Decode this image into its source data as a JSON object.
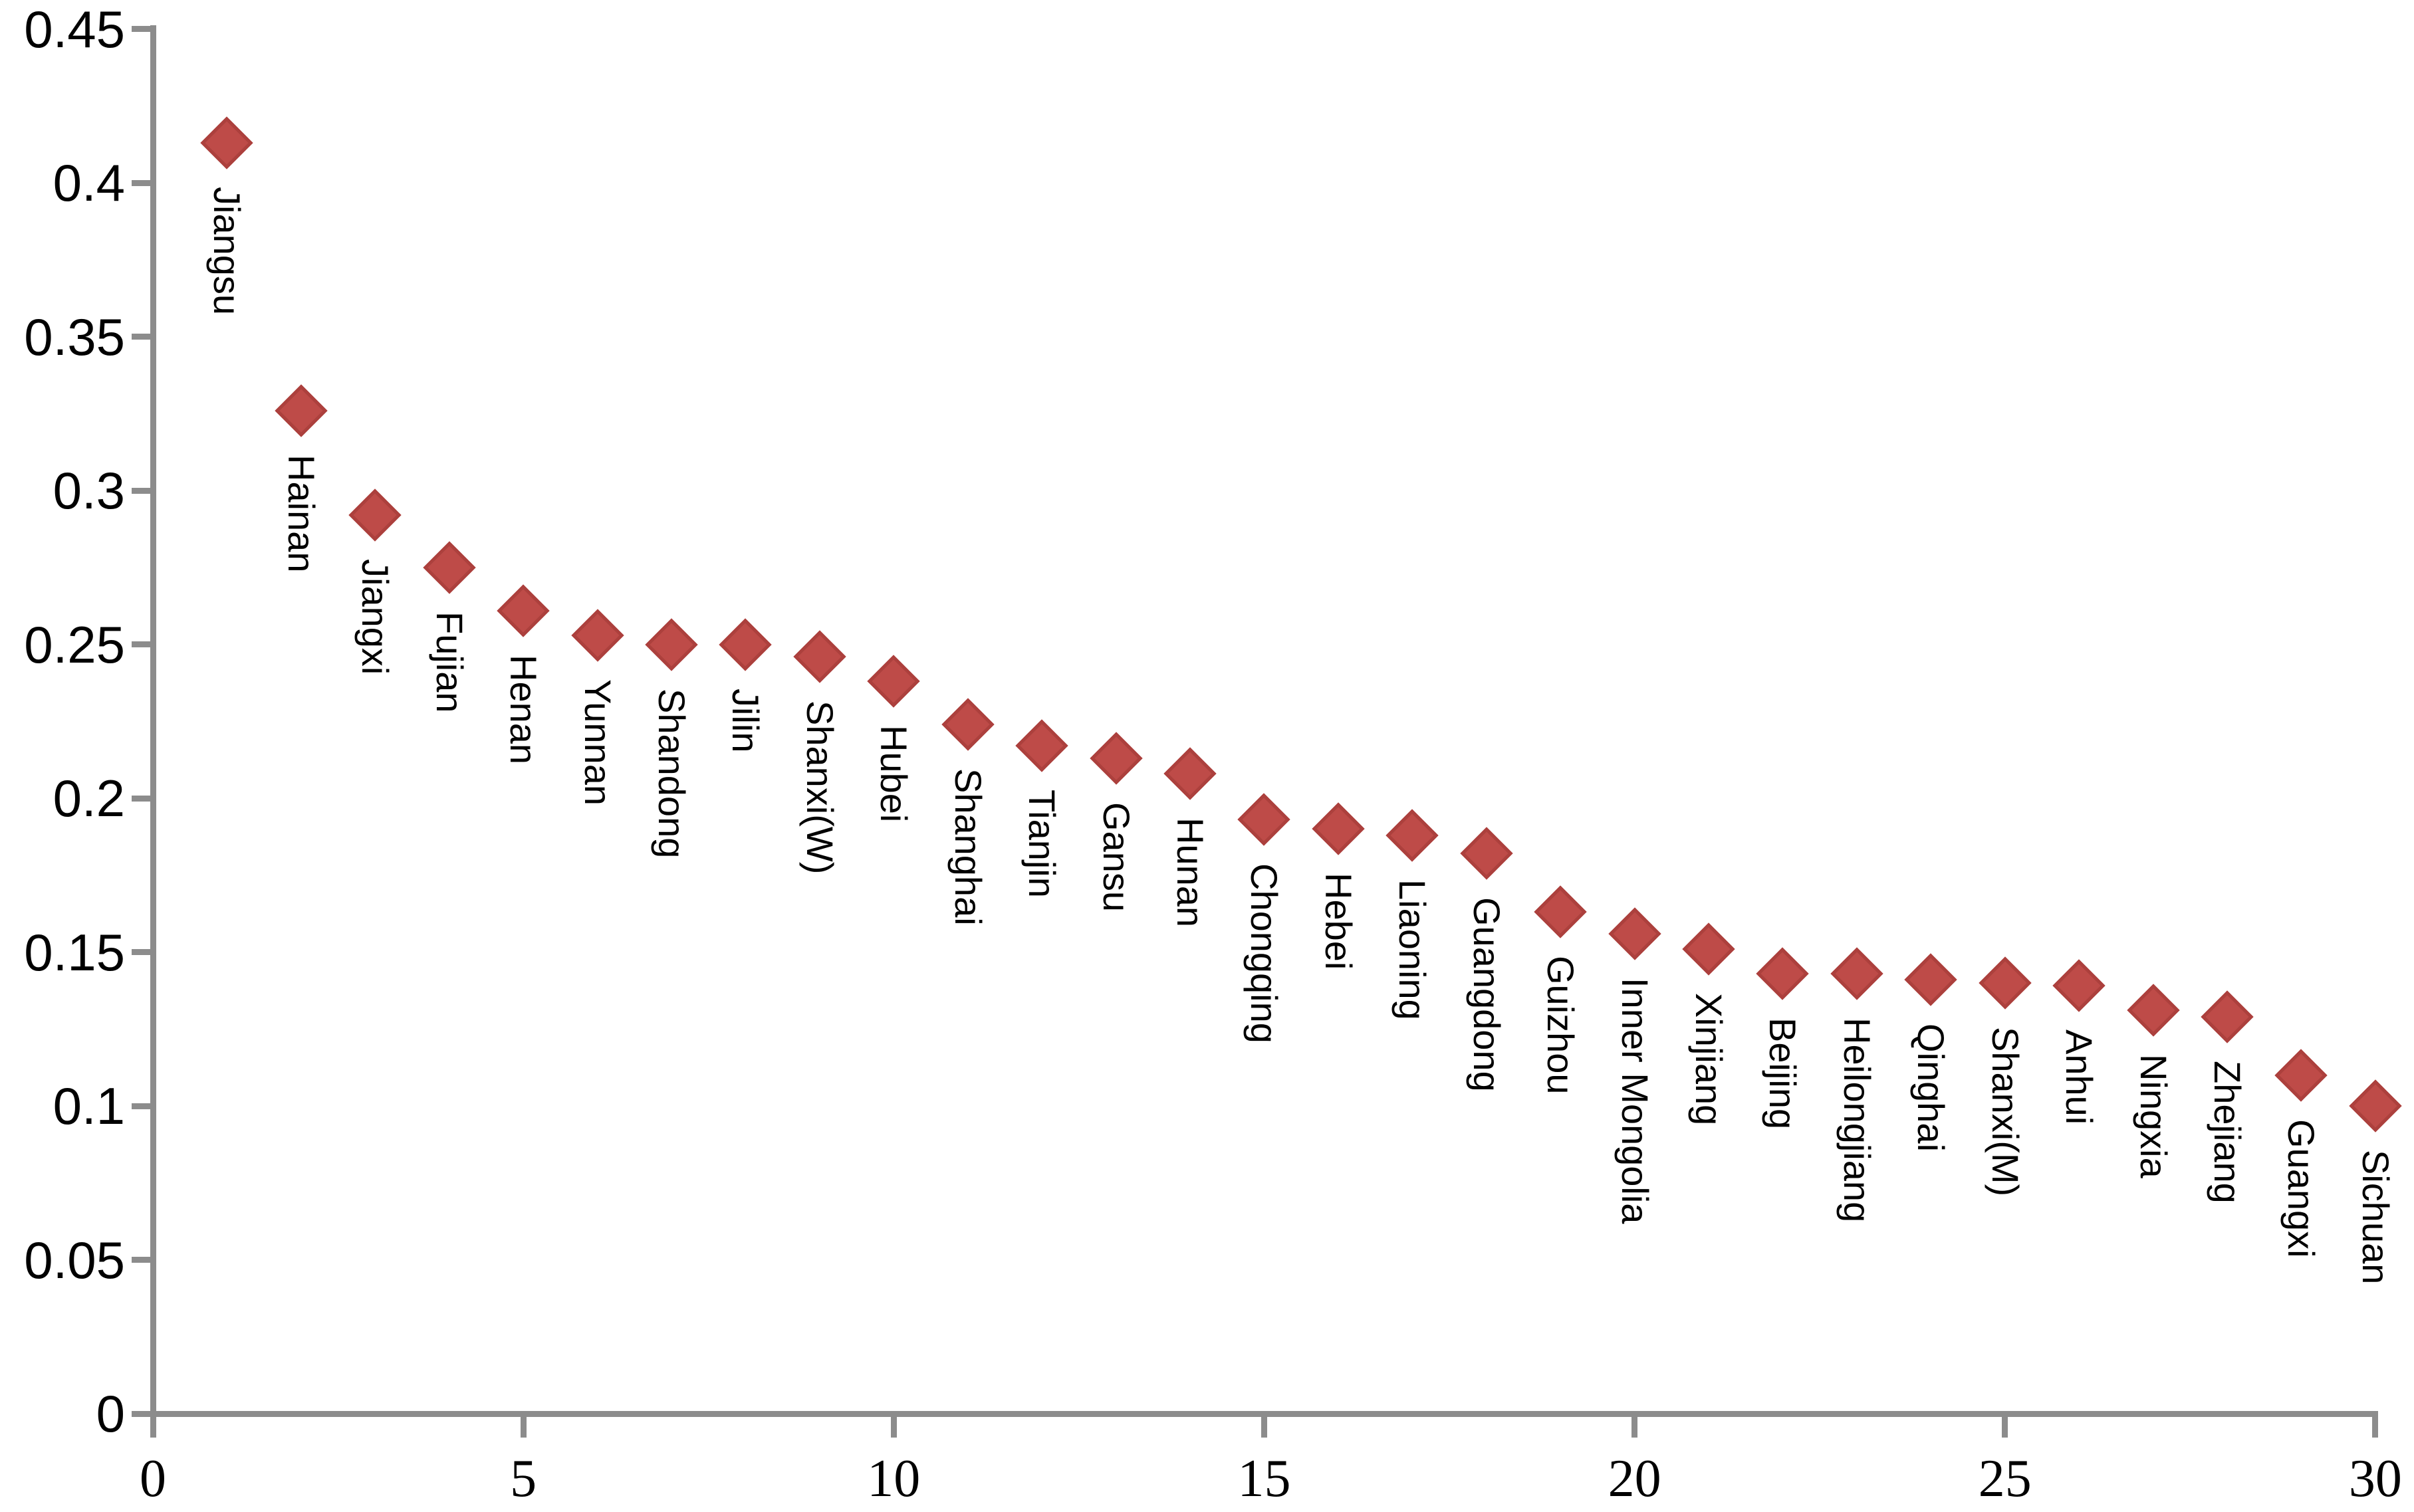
{
  "chart_data": {
    "type": "scatter",
    "title": "",
    "xlabel": "",
    "ylabel": "",
    "grid": "off",
    "legend": "none",
    "marker": "diamond",
    "colors": {
      "marker_fill": "#BE4B48",
      "marker_edge": "#AC403D",
      "axis": "#8C8C8C",
      "text": "#000000"
    },
    "xlim": [
      0,
      30
    ],
    "ylim": [
      0,
      0.45
    ],
    "x_ticks": [
      "0",
      "5",
      "10",
      "15",
      "20",
      "25",
      "30"
    ],
    "y_ticks": [
      "0",
      "0.05",
      "0.1",
      "0.15",
      "0.2",
      "0.25",
      "0.3",
      "0.35",
      "0.4",
      "0.45"
    ],
    "points": [
      {
        "x": 1,
        "y": 0.413,
        "label": "Jiangsu"
      },
      {
        "x": 2,
        "y": 0.326,
        "label": "Hainan"
      },
      {
        "x": 3,
        "y": 0.292,
        "label": "Jiangxi"
      },
      {
        "x": 4,
        "y": 0.275,
        "label": "Fujian"
      },
      {
        "x": 5,
        "y": 0.261,
        "label": "Henan"
      },
      {
        "x": 6,
        "y": 0.253,
        "label": "Yunnan"
      },
      {
        "x": 7,
        "y": 0.25,
        "label": "Shandong"
      },
      {
        "x": 8,
        "y": 0.25,
        "label": "Jilin"
      },
      {
        "x": 9,
        "y": 0.246,
        "label": "Shanxi(W)"
      },
      {
        "x": 10,
        "y": 0.238,
        "label": "Hubei"
      },
      {
        "x": 11,
        "y": 0.224,
        "label": "Shanghai"
      },
      {
        "x": 12,
        "y": 0.217,
        "label": "Tianjin"
      },
      {
        "x": 13,
        "y": 0.213,
        "label": "Gansu"
      },
      {
        "x": 14,
        "y": 0.208,
        "label": "Hunan"
      },
      {
        "x": 15,
        "y": 0.193,
        "label": "Chongqing"
      },
      {
        "x": 16,
        "y": 0.19,
        "label": "Hebei"
      },
      {
        "x": 17,
        "y": 0.188,
        "label": "Liaoning"
      },
      {
        "x": 18,
        "y": 0.182,
        "label": "Guangdong"
      },
      {
        "x": 19,
        "y": 0.163,
        "label": "Guizhou"
      },
      {
        "x": 20,
        "y": 0.156,
        "label": "Inner Mongolia"
      },
      {
        "x": 21,
        "y": 0.151,
        "label": "Xinjiang"
      },
      {
        "x": 22,
        "y": 0.143,
        "label": "Beijing"
      },
      {
        "x": 23,
        "y": 0.143,
        "label": "Heilongjiang"
      },
      {
        "x": 24,
        "y": 0.141,
        "label": "Qinghai"
      },
      {
        "x": 25,
        "y": 0.14,
        "label": "Shanxi(M)"
      },
      {
        "x": 26,
        "y": 0.139,
        "label": "Anhui"
      },
      {
        "x": 27,
        "y": 0.131,
        "label": "Ningxia"
      },
      {
        "x": 28,
        "y": 0.129,
        "label": "Zhejiang"
      },
      {
        "x": 29,
        "y": 0.11,
        "label": "Guangxi"
      },
      {
        "x": 30,
        "y": 0.1,
        "label": "Sichuan"
      }
    ]
  }
}
